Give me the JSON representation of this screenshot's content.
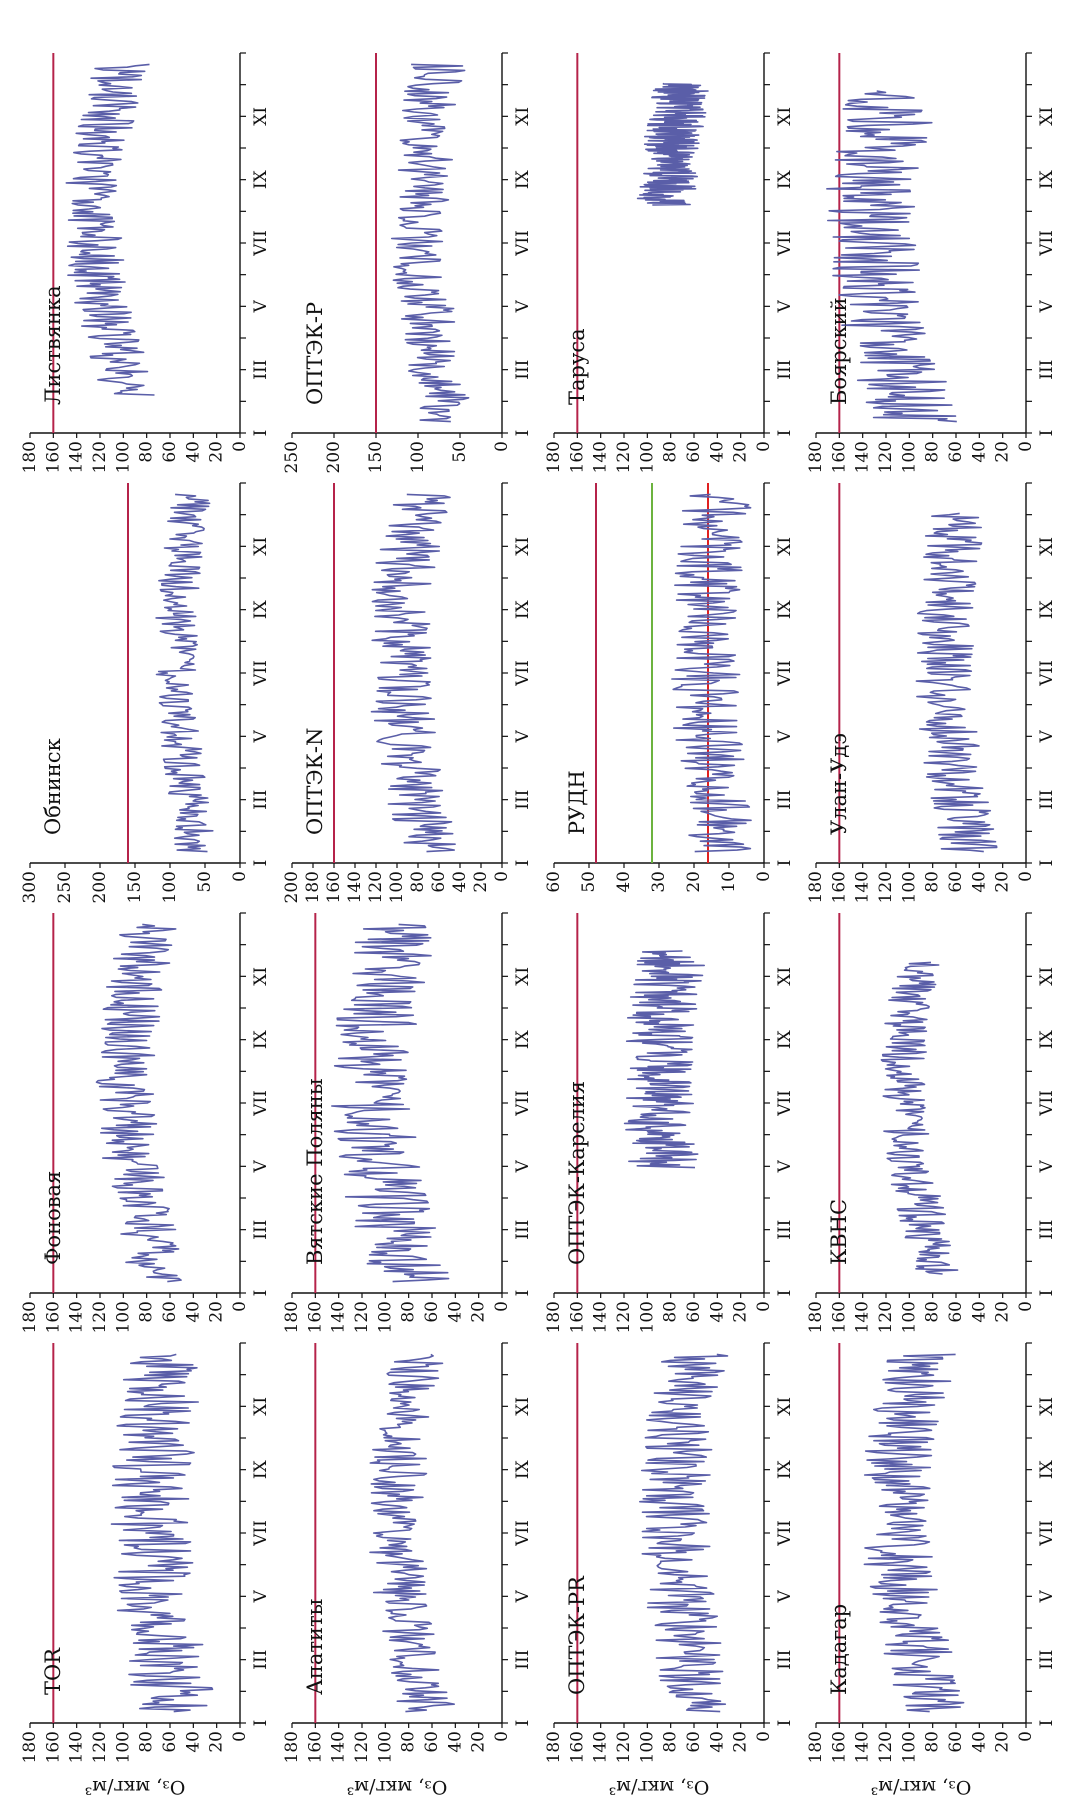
{
  "y_axis_label": "O₃, мкг/м³",
  "x_month_labels": [
    "I",
    "III",
    "V",
    "VII",
    "IX",
    "XI"
  ],
  "colors": {
    "series": "#5a5ea8",
    "limit": "#b5234a",
    "green": "#6cb33f",
    "red": "#e02020",
    "axis": "#111111"
  },
  "chart_data": [
    {
      "type": "line",
      "title": "TOR",
      "ylim": [
        0,
        180
      ],
      "yticks": [
        0,
        20,
        40,
        60,
        80,
        100,
        120,
        140,
        160,
        180
      ],
      "limit": 160,
      "base": 55,
      "amp": 35,
      "start": 0.03,
      "end": 0.97,
      "seed": 1
    },
    {
      "type": "line",
      "title": "Фоновая",
      "ylim": [
        0,
        180
      ],
      "yticks": [
        0,
        20,
        40,
        60,
        80,
        100,
        120,
        140,
        160,
        180
      ],
      "limit": 160,
      "base": 70,
      "amp": 25,
      "start": 0.03,
      "end": 0.97,
      "seed": 2
    },
    {
      "type": "line",
      "title": "Обнинск",
      "ylim": [
        0,
        300
      ],
      "yticks": [
        0,
        50,
        100,
        150,
        200,
        250,
        300
      ],
      "limit": 160,
      "base": 65,
      "amp": 30,
      "start": 0.03,
      "end": 0.97,
      "seed": 3
    },
    {
      "type": "line",
      "title": "Листвянка",
      "ylim": [
        0,
        180
      ],
      "yticks": [
        0,
        20,
        40,
        60,
        80,
        100,
        120,
        140,
        160,
        180
      ],
      "limit": 160,
      "base": 90,
      "amp": 25,
      "start": 0.1,
      "end": 0.97,
      "seed": 4
    },
    {
      "type": "line",
      "title": "Апатиты",
      "ylim": [
        0,
        180
      ],
      "yticks": [
        0,
        20,
        40,
        60,
        80,
        100,
        120,
        140,
        160,
        180
      ],
      "limit": 160,
      "base": 65,
      "amp": 25,
      "start": 0.03,
      "end": 0.97,
      "seed": 5
    },
    {
      "type": "line",
      "title": "Вятские Поляны",
      "ylim": [
        0,
        180
      ],
      "yticks": [
        0,
        20,
        40,
        60,
        80,
        100,
        120,
        140,
        160,
        180
      ],
      "limit": 160,
      "base": 80,
      "amp": 35,
      "start": 0.03,
      "end": 0.97,
      "seed": 6
    },
    {
      "type": "line",
      "title": "ОПТЭК-N",
      "ylim": [
        0,
        200
      ],
      "yticks": [
        0,
        20,
        40,
        60,
        80,
        100,
        120,
        140,
        160,
        180,
        200
      ],
      "limit": 160,
      "base": 70,
      "amp": 30,
      "start": 0.03,
      "end": 0.97,
      "seed": 7
    },
    {
      "type": "line",
      "title": "ОПТЭК-Р",
      "ylim": [
        0,
        250
      ],
      "yticks": [
        0,
        50,
        100,
        150,
        200,
        250
      ],
      "limit": 150,
      "base": 70,
      "amp": 35,
      "start": 0.03,
      "end": 0.97,
      "seed": 8
    },
    {
      "type": "line",
      "title": "ОПТЭК-PR",
      "ylim": [
        0,
        180
      ],
      "yticks": [
        0,
        20,
        40,
        60,
        80,
        100,
        120,
        140,
        160,
        180
      ],
      "limit": 160,
      "base": 55,
      "amp": 30,
      "start": 0.03,
      "end": 0.97,
      "seed": 9
    },
    {
      "type": "line",
      "title": "ОПТЭК-Карелия",
      "ylim": [
        0,
        180
      ],
      "yticks": [
        0,
        20,
        40,
        60,
        80,
        100,
        120,
        140,
        160,
        180
      ],
      "limit": 160,
      "base": 65,
      "amp": 30,
      "start": 0.33,
      "end": 0.9,
      "seed": 10
    },
    {
      "type": "line",
      "title": "РУДН",
      "ylim": [
        0,
        60
      ],
      "yticks": [
        0,
        10,
        20,
        30,
        40,
        50,
        60
      ],
      "limit": 48,
      "lines2": [
        32,
        16
      ],
      "base": 12,
      "amp": 10,
      "start": 0.03,
      "end": 0.97,
      "seed": 11
    },
    {
      "type": "line",
      "title": "Таруса",
      "ylim": [
        0,
        180
      ],
      "yticks": [
        0,
        20,
        40,
        60,
        80,
        100,
        120,
        140,
        160,
        180
      ],
      "limit": 160,
      "base": 60,
      "amp": 25,
      "start": 0.6,
      "end": 0.92,
      "seed": 12
    },
    {
      "type": "line",
      "title": "Кадагар",
      "ylim": [
        0,
        180
      ],
      "yticks": [
        0,
        20,
        40,
        60,
        80,
        100,
        120,
        140,
        160,
        180
      ],
      "limit": 160,
      "base": 80,
      "amp": 30,
      "start": 0.03,
      "end": 0.97,
      "seed": 13
    },
    {
      "type": "line",
      "title": "КВНС",
      "ylim": [
        0,
        180
      ],
      "yticks": [
        0,
        20,
        40,
        60,
        80,
        100,
        120,
        140,
        160,
        180
      ],
      "limit": 160,
      "base": 75,
      "amp": 20,
      "start": 0.05,
      "end": 0.87,
      "seed": 14
    },
    {
      "type": "line",
      "title": "Улан-Удэ",
      "ylim": [
        0,
        180
      ],
      "yticks": [
        0,
        20,
        40,
        60,
        80,
        100,
        120,
        140,
        160,
        180
      ],
      "limit": 160,
      "base": 50,
      "amp": 25,
      "start": 0.03,
      "end": 0.92,
      "seed": 15
    },
    {
      "type": "line",
      "title": "Боярский",
      "ylim": [
        0,
        180
      ],
      "yticks": [
        0,
        20,
        40,
        60,
        80,
        100,
        120,
        140,
        160,
        180
      ],
      "limit": 160,
      "base": 95,
      "amp": 40,
      "start": 0.03,
      "end": 0.9,
      "seed": 16
    }
  ]
}
